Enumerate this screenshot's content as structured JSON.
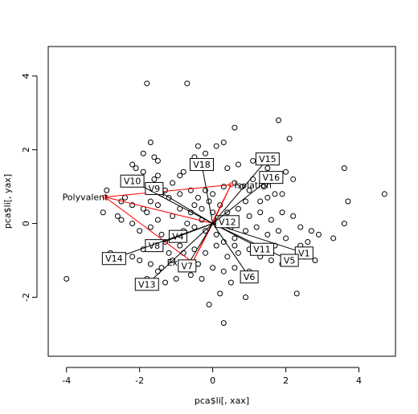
{
  "chart_data": {
    "type": "scatter",
    "title": "",
    "xlabel": "pca$li[, xax]",
    "ylabel": "pca$li[, yax]",
    "xlim": [
      -4.5,
      5
    ],
    "ylim": [
      -3.6,
      4.8
    ],
    "x_ticks": [
      -4,
      -2,
      0,
      2,
      4
    ],
    "y_ticks": [
      -2,
      0,
      2,
      4
    ],
    "grid": false,
    "origin": [
      0,
      0
    ],
    "points": [
      [
        -1.8,
        3.8
      ],
      [
        -0.7,
        3.8
      ],
      [
        -4.0,
        -1.5
      ],
      [
        4.7,
        0.8
      ],
      [
        3.6,
        1.5
      ],
      [
        3.7,
        0.6
      ],
      [
        3.6,
        0.0
      ],
      [
        1.8,
        2.8
      ],
      [
        2.1,
        2.3
      ],
      [
        0.6,
        2.6
      ],
      [
        0.3,
        2.2
      ],
      [
        -0.4,
        2.1
      ],
      [
        -1.7,
        2.2
      ],
      [
        -1.9,
        1.9
      ],
      [
        -1.5,
        1.7
      ],
      [
        -1.6,
        1.8
      ],
      [
        -2.1,
        1.5
      ],
      [
        -2.2,
        1.6
      ],
      [
        -1.9,
        1.4
      ],
      [
        -1.5,
        1.3
      ],
      [
        -1.6,
        1.2
      ],
      [
        -1.3,
        0.9
      ],
      [
        -0.9,
        1.3
      ],
      [
        -0.8,
        1.4
      ],
      [
        -0.5,
        1.8
      ],
      [
        -0.2,
        1.9
      ],
      [
        0.1,
        2.1
      ],
      [
        0.4,
        1.5
      ],
      [
        0.7,
        1.6
      ],
      [
        1.1,
        1.7
      ],
      [
        1.5,
        1.5
      ],
      [
        1.8,
        1.3
      ],
      [
        2.0,
        1.4
      ],
      [
        2.2,
        1.2
      ],
      [
        1.7,
        0.8
      ],
      [
        1.5,
        0.7
      ],
      [
        1.9,
        0.8
      ],
      [
        1.3,
        0.6
      ],
      [
        1.0,
        0.9
      ],
      [
        0.8,
        1.0
      ],
      [
        0.6,
        1.1
      ],
      [
        0.3,
        1.0
      ],
      [
        0.0,
        0.8
      ],
      [
        -0.2,
        0.9
      ],
      [
        -0.4,
        0.7
      ],
      [
        -0.6,
        0.9
      ],
      [
        -0.9,
        0.8
      ],
      [
        -1.2,
        0.7
      ],
      [
        -1.4,
        0.8
      ],
      [
        -1.7,
        0.6
      ],
      [
        -1.9,
        0.4
      ],
      [
        -2.2,
        0.5
      ],
      [
        -2.5,
        0.6
      ],
      [
        -2.6,
        0.2
      ],
      [
        -2.5,
        0.1
      ],
      [
        -2.2,
        0.0
      ],
      [
        -2.0,
        -0.2
      ],
      [
        -1.8,
        0.3
      ],
      [
        -1.5,
        0.1
      ],
      [
        -1.7,
        -0.1
      ],
      [
        -1.4,
        -0.3
      ],
      [
        -1.1,
        0.2
      ],
      [
        -0.9,
        0.4
      ],
      [
        -0.6,
        0.3
      ],
      [
        -0.3,
        0.4
      ],
      [
        -0.1,
        0.6
      ],
      [
        0.2,
        0.5
      ],
      [
        0.4,
        0.3
      ],
      [
        0.7,
        0.4
      ],
      [
        1.0,
        0.2
      ],
      [
        1.3,
        0.3
      ],
      [
        1.6,
        0.1
      ],
      [
        1.9,
        0.3
      ],
      [
        2.2,
        0.2
      ],
      [
        2.4,
        -0.1
      ],
      [
        2.7,
        -0.2
      ],
      [
        2.9,
        -0.3
      ],
      [
        2.6,
        -0.5
      ],
      [
        2.4,
        -0.6
      ],
      [
        2.0,
        -0.4
      ],
      [
        1.8,
        -0.2
      ],
      [
        1.5,
        -0.3
      ],
      [
        1.2,
        -0.1
      ],
      [
        0.9,
        -0.2
      ],
      [
        0.6,
        -0.4
      ],
      [
        0.3,
        -0.5
      ],
      [
        0.1,
        -0.3
      ],
      [
        -0.2,
        -0.2
      ],
      [
        -0.5,
        -0.1
      ],
      [
        -0.8,
        -0.2
      ],
      [
        -1.0,
        -0.4
      ],
      [
        -1.3,
        -0.5
      ],
      [
        -1.6,
        -0.6
      ],
      [
        -1.9,
        -0.7
      ],
      [
        -2.2,
        -0.9
      ],
      [
        -2.0,
        -1.0
      ],
      [
        -1.7,
        -1.1
      ],
      [
        -1.4,
        -1.2
      ],
      [
        -1.1,
        -1.0
      ],
      [
        -0.8,
        -0.8
      ],
      [
        -0.5,
        -0.7
      ],
      [
        -0.2,
        -0.8
      ],
      [
        0.1,
        -0.6
      ],
      [
        0.4,
        -0.9
      ],
      [
        0.7,
        -0.8
      ],
      [
        1.0,
        -0.7
      ],
      [
        1.3,
        -0.9
      ],
      [
        1.6,
        -1.0
      ],
      [
        1.9,
        -1.1
      ],
      [
        2.2,
        -1.0
      ],
      [
        2.5,
        -0.9
      ],
      [
        2.8,
        -1.0
      ],
      [
        3.3,
        -0.4
      ],
      [
        2.3,
        -1.9
      ],
      [
        0.9,
        -2.0
      ],
      [
        0.3,
        -2.7
      ],
      [
        -0.1,
        -2.2
      ],
      [
        0.2,
        -1.9
      ],
      [
        0.5,
        -1.6
      ],
      [
        -0.3,
        -1.5
      ],
      [
        -0.6,
        -1.4
      ],
      [
        -1.0,
        -1.5
      ],
      [
        -1.3,
        -1.6
      ],
      [
        -1.6,
        -1.7
      ],
      [
        -1.8,
        -1.5
      ],
      [
        -1.5,
        -1.3
      ],
      [
        -0.4,
        -1.1
      ],
      [
        0.0,
        -1.2
      ],
      [
        0.3,
        -1.3
      ],
      [
        0.6,
        -1.2
      ],
      [
        -2.5,
        -1.0
      ],
      [
        -2.8,
        -0.8
      ],
      [
        -3.0,
        0.3
      ],
      [
        -2.9,
        0.9
      ],
      [
        -2.4,
        0.7
      ],
      [
        -0.3,
        0.1
      ],
      [
        0.2,
        0.0
      ],
      [
        0.5,
        -0.1
      ],
      [
        -0.7,
        0.0
      ],
      [
        1.1,
        1.2
      ],
      [
        1.4,
        1.0
      ],
      [
        0.9,
        0.6
      ],
      [
        -1.1,
        1.1
      ],
      [
        -1.5,
        0.5
      ],
      [
        -0.5,
        0.5
      ],
      [
        0.6,
        -0.6
      ],
      [
        1.0,
        -1.3
      ],
      [
        1.7,
        -0.6
      ],
      [
        -0.9,
        -0.6
      ],
      [
        -1.2,
        -0.8
      ],
      [
        0.0,
        0.3
      ]
    ],
    "loadings": [
      {
        "name": "V1",
        "x": 2.5,
        "y": -0.8
      },
      {
        "name": "V4",
        "x": -0.95,
        "y": -0.35
      },
      {
        "name": "V5",
        "x": 2.1,
        "y": -1.0
      },
      {
        "name": "V6",
        "x": 1.0,
        "y": -1.45
      },
      {
        "name": "V7",
        "x": -0.7,
        "y": -1.15
      },
      {
        "name": "V8",
        "x": -1.6,
        "y": -0.6
      },
      {
        "name": "V9",
        "x": -1.6,
        "y": 0.95
      },
      {
        "name": "V10",
        "x": -2.2,
        "y": 1.15
      },
      {
        "name": "V11",
        "x": 1.35,
        "y": -0.7
      },
      {
        "name": "V12",
        "x": 0.4,
        "y": 0.05
      },
      {
        "name": "V13",
        "x": -1.8,
        "y": -1.65
      },
      {
        "name": "V14",
        "x": -2.7,
        "y": -0.95
      },
      {
        "name": "V15",
        "x": 1.5,
        "y": 1.75
      },
      {
        "name": "V16",
        "x": 1.6,
        "y": 1.25
      },
      {
        "name": "V18",
        "x": -0.3,
        "y": 1.6
      }
    ],
    "groups": [
      {
        "name": "Polyvalent",
        "x": -2.95,
        "y": 0.72,
        "color": "#ff0000"
      },
      {
        "name": "Isolation",
        "x": 0.5,
        "y": 1.05,
        "color": "#ff0000"
      },
      {
        "name": "Expert",
        "x": -0.55,
        "y": -1.05,
        "color": "#ff0000"
      }
    ],
    "colors": {
      "points": "#000000",
      "loadings": "#000000",
      "groups": "#ff0000"
    }
  }
}
